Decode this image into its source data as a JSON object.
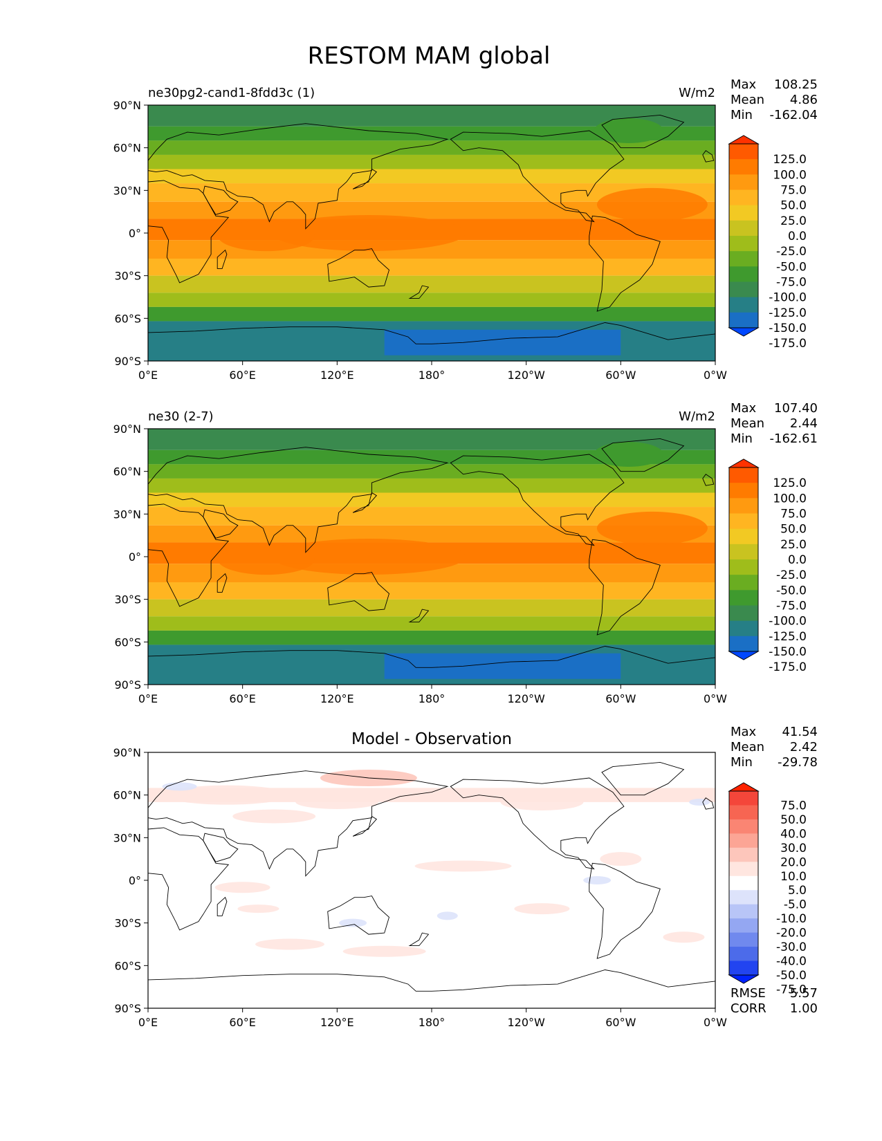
{
  "title": "RESTOM MAM global",
  "x_ticks": [
    "0°E",
    "60°E",
    "120°E",
    "180°",
    "120°W",
    "60°W",
    "0°W"
  ],
  "y_ticks": [
    "90°N",
    "60°N",
    "30°N",
    "0°",
    "30°S",
    "60°S",
    "90°S"
  ],
  "panels": [
    {
      "title_left": "ne30pg2-cand1-8fdd3c (1)",
      "title_center": "",
      "units": "W/m2",
      "stats": {
        "max_label": "Max",
        "max": "108.25",
        "mean_label": "Mean",
        "mean": "4.86",
        "min_label": "Min",
        "min": "-162.04"
      },
      "colorbar": {
        "labels": [
          "125.0",
          "100.0",
          "75.0",
          "50.0",
          "25.0",
          "0.0",
          "-25.0",
          "-50.0",
          "-75.0",
          "-100.0",
          "-125.0",
          "-150.0",
          "-175.0"
        ],
        "colors": [
          "#ff3200",
          "#ff5a00",
          "#ff7b00",
          "#ff9a10",
          "#ffb521",
          "#f2c923",
          "#c9c320",
          "#9fbd1b",
          "#6aad21",
          "#3f9a2e",
          "#3a8a4e",
          "#267f86",
          "#1a6fc5",
          "#0047ff"
        ]
      }
    },
    {
      "title_left": "ne30 (2-7)",
      "title_center": "",
      "units": "W/m2",
      "stats": {
        "max_label": "Max",
        "max": "107.40",
        "mean_label": "Mean",
        "mean": "2.44",
        "min_label": "Min",
        "min": "-162.61"
      },
      "colorbar": {
        "labels": [
          "125.0",
          "100.0",
          "75.0",
          "50.0",
          "25.0",
          "0.0",
          "-25.0",
          "-50.0",
          "-75.0",
          "-100.0",
          "-125.0",
          "-150.0",
          "-175.0"
        ],
        "colors": [
          "#ff3200",
          "#ff5a00",
          "#ff7b00",
          "#ff9a10",
          "#ffb521",
          "#f2c923",
          "#c9c320",
          "#9fbd1b",
          "#6aad21",
          "#3f9a2e",
          "#3a8a4e",
          "#267f86",
          "#1a6fc5",
          "#0047ff"
        ]
      }
    },
    {
      "title_left": "",
      "title_center": "Model - Observation",
      "units": "",
      "stats": {
        "max_label": "Max",
        "max": "41.54",
        "mean_label": "Mean",
        "mean": "2.42",
        "min_label": "Min",
        "min": "-29.78"
      },
      "colorbar": {
        "labels": [
          "75.0",
          "50.0",
          "40.0",
          "30.0",
          "20.0",
          "10.0",
          "5.0",
          "-5.0",
          "-10.0",
          "-20.0",
          "-30.0",
          "-40.0",
          "-50.0",
          "-75.0"
        ],
        "colors": [
          "#ff2200",
          "#f4463a",
          "#f76552",
          "#fa8573",
          "#fca595",
          "#fdc6bb",
          "#ffe6e0",
          "#ffffff",
          "#dde3fb",
          "#b8c5f7",
          "#94a7f2",
          "#7089ee",
          "#4c6bea",
          "#2244f0",
          "#0022ff"
        ]
      },
      "extra_stats": {
        "rmse_label": "RMSE",
        "rmse": "5.57",
        "corr_label": "CORR",
        "corr": "1.00"
      }
    }
  ]
}
